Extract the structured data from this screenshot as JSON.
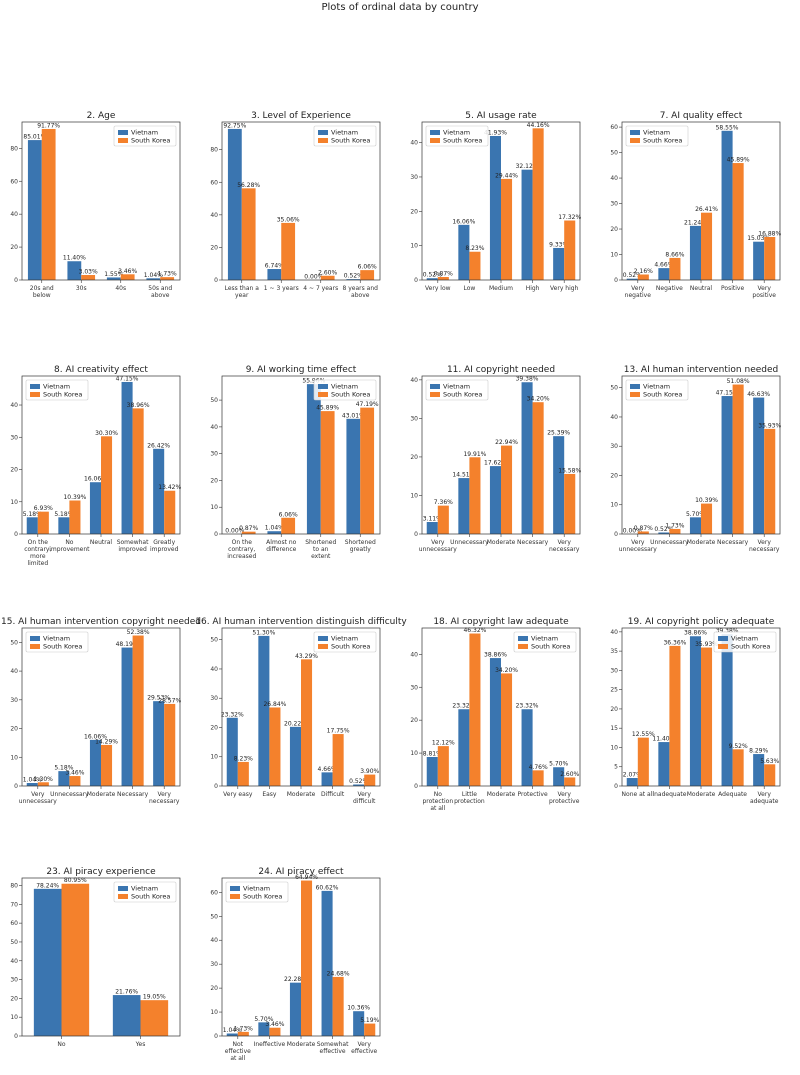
{
  "figure_title": "Plots of ordinal data by country",
  "colors": {
    "Vietnam": "#3a75b0",
    "South Korea": "#f4812c"
  },
  "chart_data": [
    {
      "type": "bar",
      "title": "2. Age",
      "categories": [
        "20s and below",
        "30s",
        "40s",
        "50s and above"
      ],
      "series": [
        {
          "name": "Vietnam",
          "values": [
            85.01,
            11.4,
            1.55,
            1.04
          ],
          "labels": [
            "85.01%",
            "11.40%",
            "1.55%",
            "1.04%"
          ]
        },
        {
          "name": "South Korea",
          "values": [
            91.77,
            3.03,
            3.46,
            1.73
          ],
          "labels": [
            "91.77%",
            "3.03%",
            "3.46%",
            "1.73%"
          ]
        }
      ],
      "ylim": [
        0,
        96
      ],
      "yticks": [
        0,
        20,
        40,
        60,
        80
      ],
      "legend": "upper-right"
    },
    {
      "type": "bar",
      "title": "3. Level of Experience",
      "categories": [
        "Less than a year",
        "1 ~ 3 years",
        "4 ~ 7 years",
        "8 years and above"
      ],
      "series": [
        {
          "name": "Vietnam",
          "values": [
            92.75,
            6.74,
            0.0,
            0.52
          ],
          "labels": [
            "92.75%",
            "6.74%",
            "0.00%",
            "0.52%"
          ]
        },
        {
          "name": "South Korea",
          "values": [
            56.28,
            35.06,
            2.6,
            6.06
          ],
          "labels": [
            "56.28%",
            "35.06%",
            "2.60%",
            "6.06%"
          ]
        }
      ],
      "ylim": [
        0,
        97
      ],
      "yticks": [
        0,
        20,
        40,
        60,
        80
      ],
      "legend": "upper-right"
    },
    {
      "type": "bar",
      "title": "5. AI usage rate",
      "categories": [
        "Very low",
        "Low",
        "Medium",
        "High",
        "Very high"
      ],
      "series": [
        {
          "name": "Vietnam",
          "values": [
            0.52,
            16.06,
            41.93,
            32.12,
            9.33
          ],
          "labels": [
            "0.52%",
            "16.06%",
            "41.93%",
            "32.12%",
            "9.33%"
          ]
        },
        {
          "name": "South Korea",
          "values": [
            0.87,
            8.23,
            29.44,
            44.16,
            17.32
          ],
          "labels": [
            "0.87%",
            "8.23%",
            "29.44%",
            "44.16%",
            "17.32%"
          ]
        }
      ],
      "ylim": [
        0,
        46
      ],
      "yticks": [
        0,
        10,
        20,
        30,
        40
      ],
      "legend": "upper-left"
    },
    {
      "type": "bar",
      "title": "7. AI quality effect",
      "categories": [
        "Very negative",
        "Negative",
        "Neutral",
        "Positive",
        "Very positive"
      ],
      "series": [
        {
          "name": "Vietnam",
          "values": [
            0.52,
            4.66,
            21.24,
            58.55,
            15.03
          ],
          "labels": [
            "0.52%",
            "4.66%",
            "21.24%",
            "58.55%",
            "15.03%"
          ]
        },
        {
          "name": "South Korea",
          "values": [
            2.16,
            8.66,
            26.41,
            45.89,
            16.88
          ],
          "labels": [
            "2.16%",
            "8.66%",
            "26.41%",
            "45.89%",
            "16.88%"
          ]
        }
      ],
      "ylim": [
        0,
        62
      ],
      "yticks": [
        0,
        10,
        20,
        30,
        40,
        50,
        60
      ],
      "legend": "upper-left"
    },
    {
      "type": "bar",
      "title": "8. AI creativity effect",
      "categories": [
        "On the contrary, more limited",
        "No improvement",
        "Neutral",
        "Somewhat improved",
        "Greatly improved"
      ],
      "series": [
        {
          "name": "Vietnam",
          "values": [
            5.18,
            5.18,
            16.06,
            47.15,
            26.42
          ],
          "labels": [
            "5.18%",
            "5.18%",
            "16.06%",
            "47.15%",
            "26.42%"
          ]
        },
        {
          "name": "South Korea",
          "values": [
            6.93,
            10.39,
            30.3,
            38.96,
            13.42
          ],
          "labels": [
            "6.93%",
            "10.39%",
            "30.30%",
            "38.96%",
            "13.42%"
          ]
        }
      ],
      "ylim": [
        0,
        49
      ],
      "yticks": [
        0,
        10,
        20,
        30,
        40
      ],
      "legend": "upper-left"
    },
    {
      "type": "bar",
      "title": "9. AI working time effect",
      "categories": [
        "On the contrary, increased",
        "Almost no difference",
        "Shortened to an extent",
        "Shortened greatly"
      ],
      "series": [
        {
          "name": "Vietnam",
          "values": [
            0.0,
            1.04,
            55.96,
            43.01
          ],
          "labels": [
            "0.00%",
            "1.04%",
            "55.96%",
            "43.01%"
          ]
        },
        {
          "name": "South Korea",
          "values": [
            0.87,
            6.06,
            45.89,
            47.19
          ],
          "labels": [
            "0.87%",
            "6.06%",
            "45.89%",
            "47.19%"
          ]
        }
      ],
      "ylim": [
        0,
        59
      ],
      "yticks": [
        0,
        10,
        20,
        30,
        40,
        50
      ],
      "legend": "upper-right"
    },
    {
      "type": "bar",
      "title": "11. AI copyright needed",
      "categories": [
        "Very unnecessary",
        "Unnecessary",
        "Moderate",
        "Necessary",
        "Very necessary"
      ],
      "series": [
        {
          "name": "Vietnam",
          "values": [
            3.11,
            14.51,
            17.62,
            39.38,
            25.39
          ],
          "labels": [
            "3.11%",
            "14.51%",
            "17.62%",
            "39.38%",
            "25.39%"
          ]
        },
        {
          "name": "South Korea",
          "values": [
            7.36,
            19.91,
            22.94,
            34.2,
            15.58
          ],
          "labels": [
            "7.36%",
            "19.91%",
            "22.94%",
            "34.20%",
            "15.58%"
          ]
        }
      ],
      "ylim": [
        0,
        41
      ],
      "yticks": [
        0,
        10,
        20,
        30,
        40
      ],
      "legend": "upper-left"
    },
    {
      "type": "bar",
      "title": "13. AI human intervention needed",
      "categories": [
        "Very unnecessary",
        "Unnecessary",
        "Moderate",
        "Necessary",
        "Very necessary"
      ],
      "series": [
        {
          "name": "Vietnam",
          "values": [
            0.0,
            0.52,
            5.7,
            47.15,
            46.63
          ],
          "labels": [
            "0.00%",
            "0.52%",
            "5.70%",
            "47.15%",
            "46.63%"
          ]
        },
        {
          "name": "South Korea",
          "values": [
            0.87,
            1.73,
            10.39,
            51.08,
            35.93
          ],
          "labels": [
            "0.87%",
            "1.73%",
            "10.39%",
            "51.08%",
            "35.93%"
          ]
        }
      ],
      "ylim": [
        0,
        54
      ],
      "yticks": [
        0,
        10,
        20,
        30,
        40,
        50
      ],
      "legend": "upper-left"
    },
    {
      "type": "bar",
      "title": "15. AI human intervention copyright needed",
      "categories": [
        "Very unnecessary",
        "Unnecessary",
        "Moderate",
        "Necessary",
        "Very necessary"
      ],
      "series": [
        {
          "name": "Vietnam",
          "values": [
            1.04,
            5.18,
            16.06,
            48.19,
            29.53
          ],
          "labels": [
            "1.04%",
            "5.18%",
            "16.06%",
            "48.19%",
            "29.53%"
          ]
        },
        {
          "name": "South Korea",
          "values": [
            1.3,
            3.46,
            14.29,
            52.38,
            28.57
          ],
          "labels": [
            "1.30%",
            "3.46%",
            "14.29%",
            "52.38%",
            "28.57%"
          ]
        }
      ],
      "ylim": [
        0,
        55
      ],
      "yticks": [
        0,
        10,
        20,
        30,
        40,
        50
      ],
      "legend": "upper-left"
    },
    {
      "type": "bar",
      "title": "16. AI human intervention distinguish difficulty",
      "categories": [
        "Very easy",
        "Easy",
        "Moderate",
        "Difficult",
        "Very difficult"
      ],
      "series": [
        {
          "name": "Vietnam",
          "values": [
            23.32,
            51.3,
            20.22,
            4.66,
            0.52
          ],
          "labels": [
            "23.32%",
            "51.30%",
            "20.22%",
            "4.66%",
            "0.52%"
          ]
        },
        {
          "name": "South Korea",
          "values": [
            8.23,
            26.84,
            43.29,
            17.75,
            3.9
          ],
          "labels": [
            "8.23%",
            "26.84%",
            "43.29%",
            "17.75%",
            "3.90%"
          ]
        }
      ],
      "ylim": [
        0,
        54
      ],
      "yticks": [
        0,
        10,
        20,
        30,
        40,
        50
      ],
      "legend": "upper-right"
    },
    {
      "type": "bar",
      "title": "18. AI copyright law adequate",
      "categories": [
        "No protection at all",
        "Little protection",
        "Moderate",
        "Protective",
        "Very protective"
      ],
      "series": [
        {
          "name": "Vietnam",
          "values": [
            8.81,
            23.32,
            38.86,
            23.32,
            5.7
          ],
          "labels": [
            "8.81%",
            "23.32%",
            "38.86%",
            "23.32%",
            "5.70%"
          ]
        },
        {
          "name": "South Korea",
          "values": [
            12.12,
            46.32,
            34.2,
            4.76,
            2.6
          ],
          "labels": [
            "12.12%",
            "46.32%",
            "34.20%",
            "4.76%",
            "2.60%"
          ]
        }
      ],
      "ylim": [
        0,
        48
      ],
      "yticks": [
        0,
        10,
        20,
        30,
        40
      ],
      "legend": "upper-right"
    },
    {
      "type": "bar",
      "title": "19. AI copyright policy adequate",
      "categories": [
        "None at all",
        "Inadequate",
        "Moderate",
        "Adequate",
        "Very adequate"
      ],
      "series": [
        {
          "name": "Vietnam",
          "values": [
            2.07,
            11.4,
            38.86,
            39.38,
            8.29
          ],
          "labels": [
            "2.07%",
            "11.40%",
            "38.86%",
            "39.38%",
            "8.29%"
          ]
        },
        {
          "name": "South Korea",
          "values": [
            12.55,
            36.36,
            35.93,
            9.52,
            5.63
          ],
          "labels": [
            "12.55%",
            "36.36%",
            "35.93%",
            "9.52%",
            "5.63%"
          ]
        }
      ],
      "ylim": [
        0,
        41
      ],
      "yticks": [
        0,
        5,
        10,
        15,
        20,
        25,
        30,
        35,
        40
      ],
      "legend": "upper-right"
    },
    {
      "type": "bar",
      "title": "23. AI piracy experience",
      "categories": [
        "No",
        "Yes"
      ],
      "series": [
        {
          "name": "Vietnam",
          "values": [
            78.24,
            21.76
          ],
          "labels": [
            "78.24%",
            "21.76%"
          ]
        },
        {
          "name": "South Korea",
          "values": [
            80.95,
            19.05
          ],
          "labels": [
            "80.95%",
            "19.05%"
          ]
        }
      ],
      "ylim": [
        0,
        84
      ],
      "yticks": [
        0,
        10,
        20,
        30,
        40,
        50,
        60,
        70,
        80
      ],
      "legend": "upper-right"
    },
    {
      "type": "bar",
      "title": "24. AI piracy effect",
      "categories": [
        "Not effective at all",
        "Ineffective",
        "Moderate",
        "Somewhat effective",
        "Very effective"
      ],
      "series": [
        {
          "name": "Vietnam",
          "values": [
            1.04,
            5.7,
            22.28,
            60.62,
            10.36
          ],
          "labels": [
            "1.04%",
            "5.70%",
            "22.28%",
            "60.62%",
            "10.36%"
          ]
        },
        {
          "name": "South Korea",
          "values": [
            1.73,
            3.46,
            64.94,
            24.68,
            5.19
          ],
          "labels": [
            "1.73%",
            "3.46%",
            "64.94%",
            "24.68%",
            "5.19%"
          ]
        }
      ],
      "ylim": [
        0,
        66
      ],
      "yticks": [
        0,
        10,
        20,
        30,
        40,
        50,
        60
      ],
      "legend": "upper-left"
    }
  ]
}
